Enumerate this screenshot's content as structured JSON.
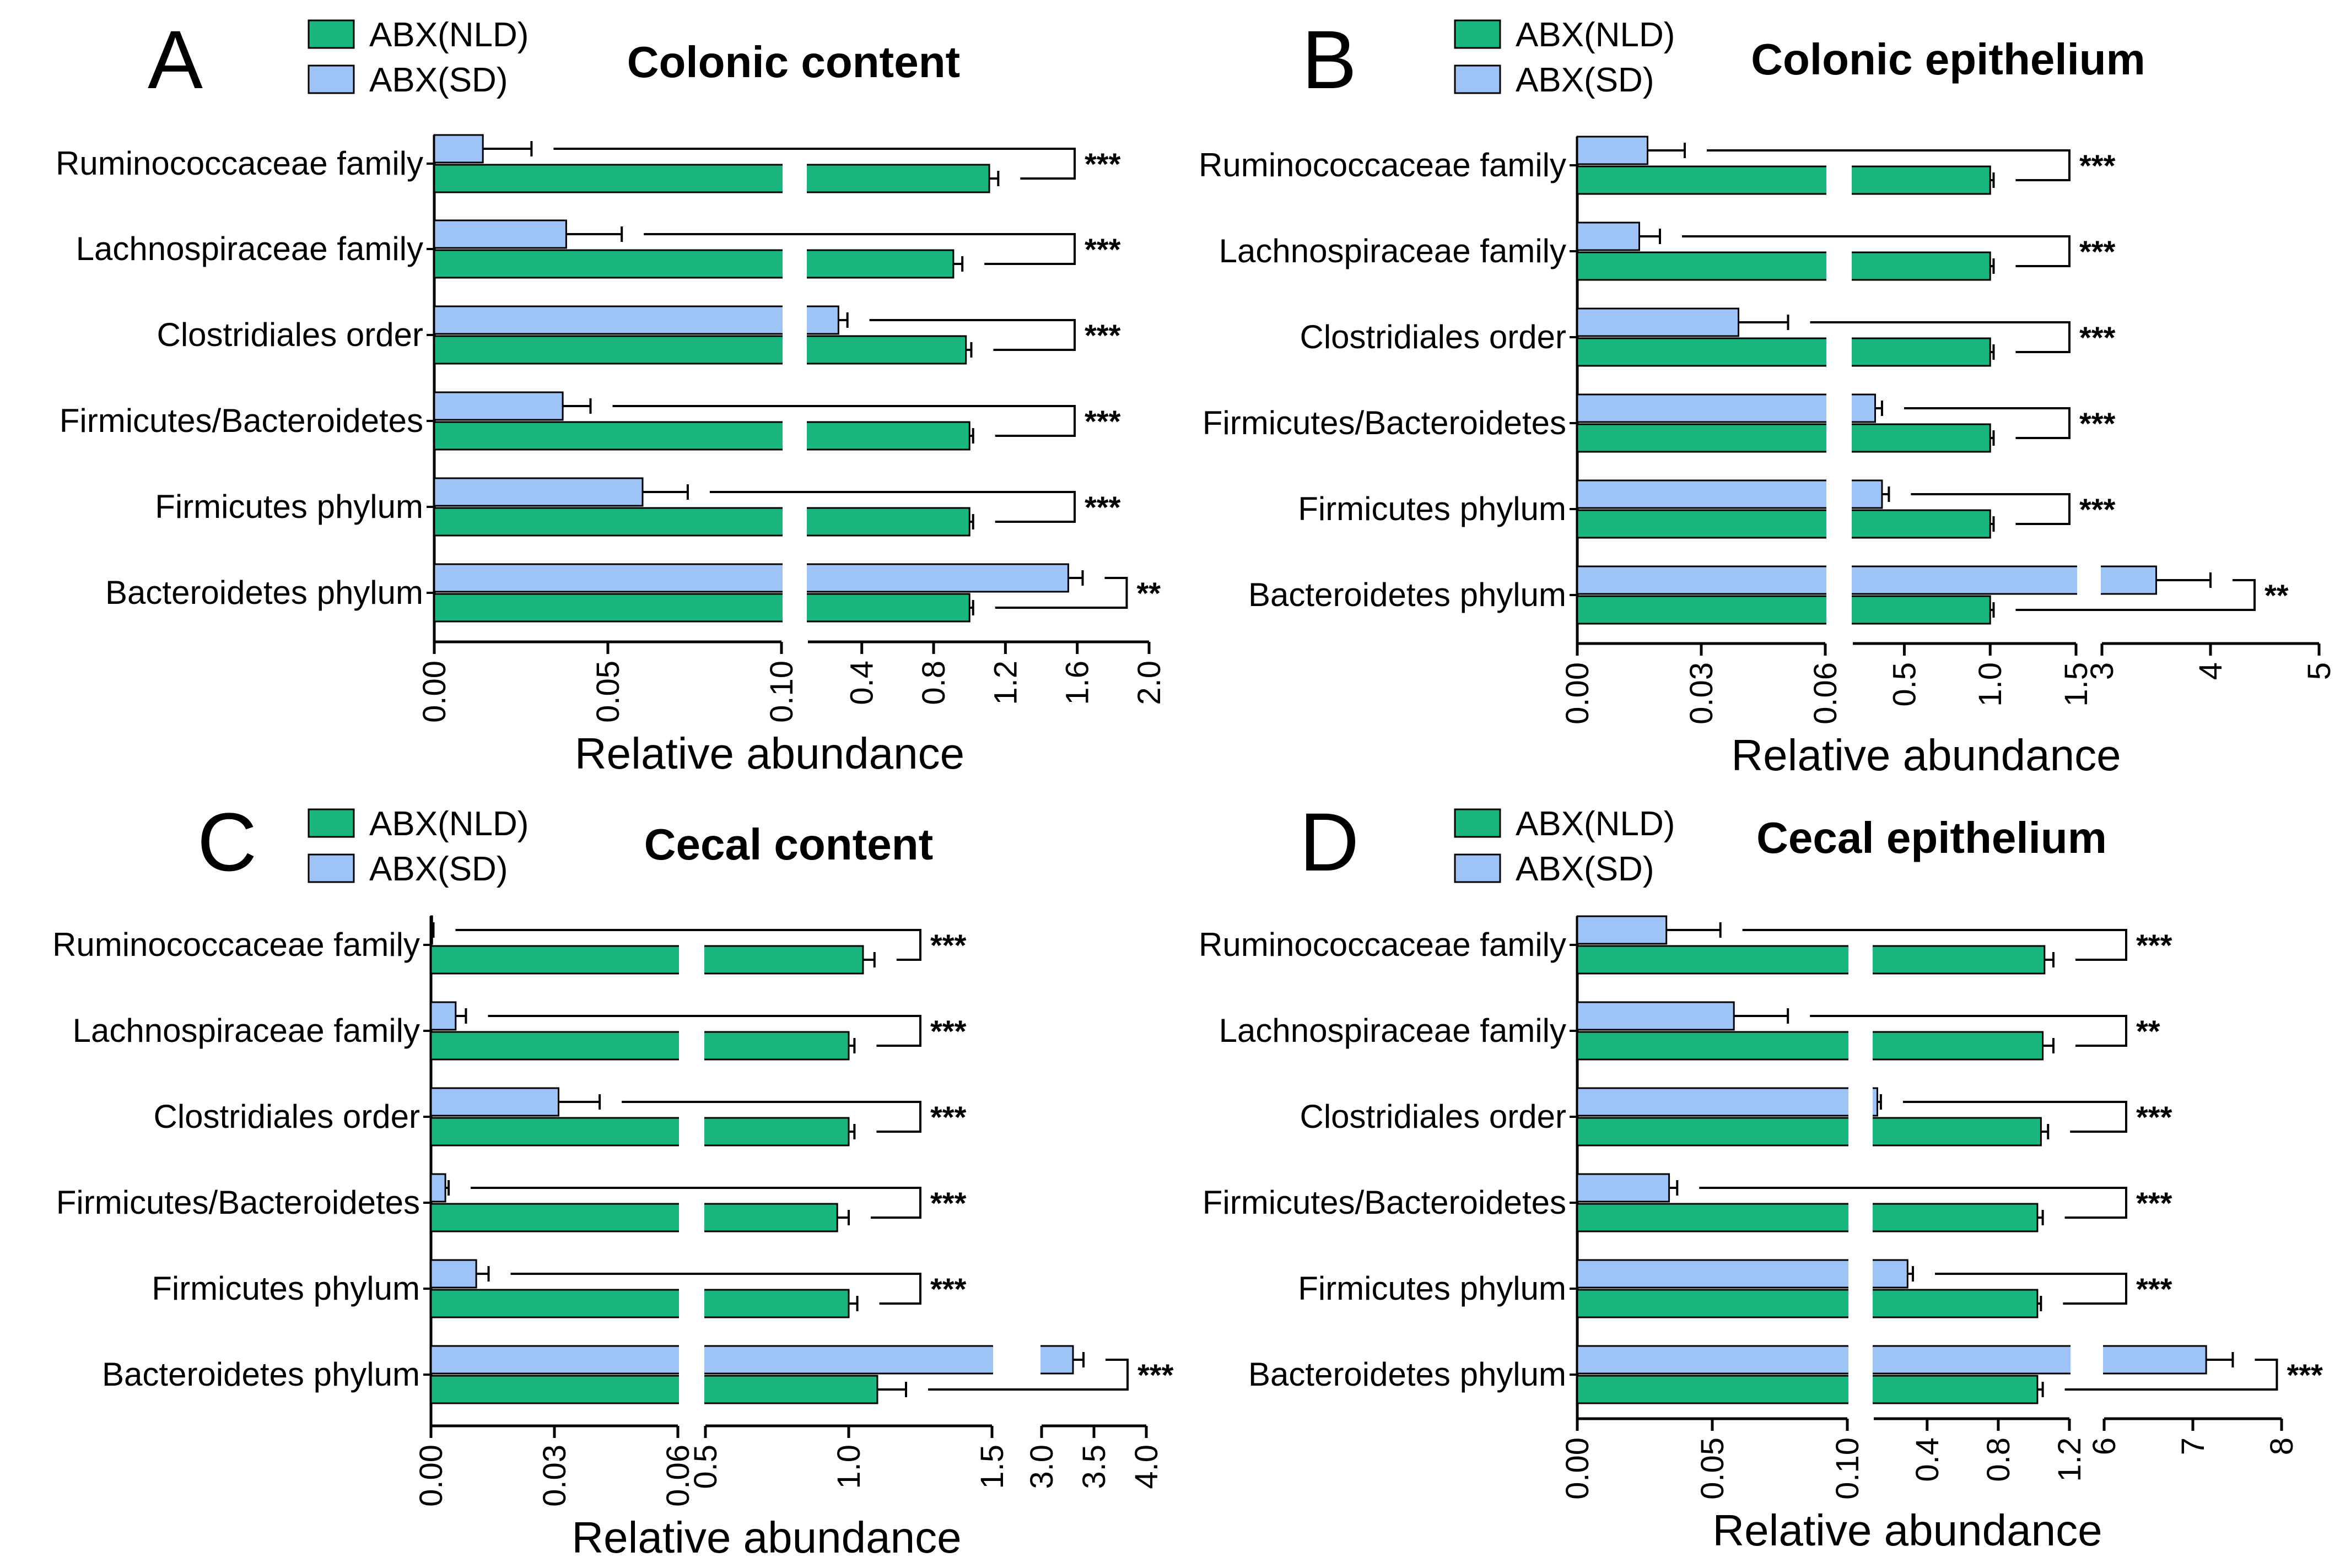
{
  "figure": {
    "legend": [
      "ABX(NLD)",
      "ABX(SD)"
    ],
    "colors": {
      "nld": "#19b67e",
      "sd": "#9ec3f7",
      "stroke": "#000000"
    },
    "xlabel": "Relative abundance"
  },
  "chart_data": [
    {
      "type": "bar",
      "orientation": "horizontal",
      "panel": "A",
      "title": "Colonic content",
      "xlabel": "Relative abundance",
      "categories": [
        "Ruminococcaceae family",
        "Lachnospiraceae family",
        "Clostridiales order",
        "Firmicutes/Bacteroidetes",
        "Firmicutes phylum",
        "Bacteroidetes phylum"
      ],
      "series": [
        {
          "name": "ABX(NLD)",
          "values": [
            1.11,
            0.91,
            0.98,
            1.0,
            1.0,
            1.0
          ],
          "errors": [
            0.05,
            0.05,
            0.03,
            0.02,
            0.02,
            0.02
          ]
        },
        {
          "name": "ABX(SD)",
          "values": [
            0.014,
            0.038,
            0.27,
            0.037,
            0.06,
            1.55
          ],
          "errors": [
            0.014,
            0.016,
            0.05,
            0.008,
            0.013,
            0.08
          ]
        }
      ],
      "significance": [
        "***",
        "***",
        "***",
        "***",
        "***",
        "**"
      ],
      "axis_segments": [
        {
          "range": [
            0,
            0.1
          ],
          "ticks": [
            0.0,
            0.05,
            0.1
          ],
          "tick_labels": [
            "0.00",
            "0.05",
            "0.10"
          ]
        },
        {
          "range": [
            0.1,
            2.0
          ],
          "ticks": [
            0.4,
            0.8,
            1.2,
            1.6,
            2.0
          ],
          "tick_labels": [
            "0.4",
            "0.8",
            "1.2",
            "1.6",
            "2.0"
          ]
        }
      ]
    },
    {
      "type": "bar",
      "orientation": "horizontal",
      "panel": "B",
      "title": "Colonic epithelium",
      "xlabel": "Relative abundance",
      "categories": [
        "Ruminococcaceae family",
        "Lachnospiraceae family",
        "Clostridiales order",
        "Firmicutes/Bacteroidetes",
        "Firmicutes phylum",
        "Bacteroidetes phylum"
      ],
      "series": [
        {
          "name": "ABX(NLD)",
          "values": [
            1.0,
            1.0,
            1.0,
            1.0,
            1.0,
            1.0
          ],
          "errors": [
            0.02,
            0.02,
            0.02,
            0.02,
            0.02,
            0.02
          ]
        },
        {
          "name": "ABX(SD)",
          "values": [
            0.017,
            0.015,
            0.039,
            0.33,
            0.37,
            3.5
          ],
          "errors": [
            0.009,
            0.005,
            0.012,
            0.04,
            0.04,
            0.5
          ]
        }
      ],
      "significance": [
        "***",
        "***",
        "***",
        "***",
        "***",
        "**"
      ],
      "axis_segments": [
        {
          "range": [
            0,
            0.06
          ],
          "ticks": [
            0.0,
            0.03,
            0.06
          ],
          "tick_labels": [
            "0.00",
            "0.03",
            "0.06"
          ]
        },
        {
          "range": [
            0.2,
            1.5
          ],
          "ticks": [
            0.5,
            1.0,
            1.5
          ],
          "tick_labels": [
            "0.5",
            "1.0",
            "1.5"
          ]
        },
        {
          "range": [
            3,
            5
          ],
          "ticks": [
            3,
            4,
            5
          ],
          "tick_labels": [
            "3",
            "4",
            "5"
          ]
        }
      ]
    },
    {
      "type": "bar",
      "orientation": "horizontal",
      "panel": "C",
      "title": "Cecal content",
      "xlabel": "Relative abundance",
      "categories": [
        "Ruminococcaceae family",
        "Lachnospiraceae family",
        "Clostridiales order",
        "Firmicutes/Bacteroidetes",
        "Firmicutes phylum",
        "Bacteroidetes phylum"
      ],
      "series": [
        {
          "name": "ABX(NLD)",
          "values": [
            1.05,
            1.0,
            1.0,
            0.96,
            1.0,
            1.1
          ],
          "errors": [
            0.04,
            0.02,
            0.02,
            0.04,
            0.03,
            0.1
          ]
        },
        {
          "name": "ABX(SD)",
          "values": [
            0.0003,
            0.006,
            0.031,
            0.0035,
            0.011,
            3.3
          ],
          "errors": [
            0.0003,
            0.0025,
            0.01,
            0.0008,
            0.003,
            0.1
          ]
        }
      ],
      "significance": [
        "***",
        "***",
        "***",
        "***",
        "***",
        "***"
      ],
      "axis_segments": [
        {
          "range": [
            0,
            0.06
          ],
          "ticks": [
            0.0,
            0.03,
            0.06
          ],
          "tick_labels": [
            "0.00",
            "0.03",
            "0.06"
          ]
        },
        {
          "range": [
            0.5,
            1.5
          ],
          "ticks": [
            0.5,
            1.0,
            1.5
          ],
          "tick_labels": [
            "0.5",
            "1.0",
            "1.5"
          ]
        },
        {
          "range": [
            3.0,
            4.0
          ],
          "ticks": [
            3.0,
            3.5,
            4.0
          ],
          "tick_labels": [
            "3.0",
            "3.5",
            "4.0"
          ]
        }
      ]
    },
    {
      "type": "bar",
      "orientation": "horizontal",
      "panel": "D",
      "title": "Cecal epithelium",
      "xlabel": "Relative abundance",
      "categories": [
        "Ruminococcaceae family",
        "Lachnospiraceae family",
        "Clostridiales order",
        "Firmicutes/Bacteroidetes",
        "Firmicutes phylum",
        "Bacteroidetes phylum"
      ],
      "series": [
        {
          "name": "ABX(NLD)",
          "values": [
            1.06,
            1.05,
            1.04,
            1.02,
            1.02,
            1.02
          ],
          "errors": [
            0.05,
            0.06,
            0.04,
            0.03,
            0.02,
            0.03
          ]
        },
        {
          "name": "ABX(SD)",
          "values": [
            0.033,
            0.058,
            0.12,
            0.034,
            0.29,
            7.15
          ],
          "errors": [
            0.02,
            0.02,
            0.02,
            0.003,
            0.03,
            0.3
          ]
        }
      ],
      "significance": [
        "***",
        "**",
        "***",
        "***",
        "***",
        "***"
      ],
      "axis_segments": [
        {
          "range": [
            0,
            0.1
          ],
          "ticks": [
            0.0,
            0.05,
            0.1
          ],
          "tick_labels": [
            "0.00",
            "0.05",
            "0.10"
          ]
        },
        {
          "range": [
            0.1,
            1.2
          ],
          "ticks": [
            0.4,
            0.8,
            1.2
          ],
          "tick_labels": [
            "0.4",
            "0.8",
            "1.2"
          ]
        },
        {
          "range": [
            6,
            8
          ],
          "ticks": [
            6,
            7,
            8
          ],
          "tick_labels": [
            "6",
            "7",
            "8"
          ]
        }
      ]
    }
  ]
}
